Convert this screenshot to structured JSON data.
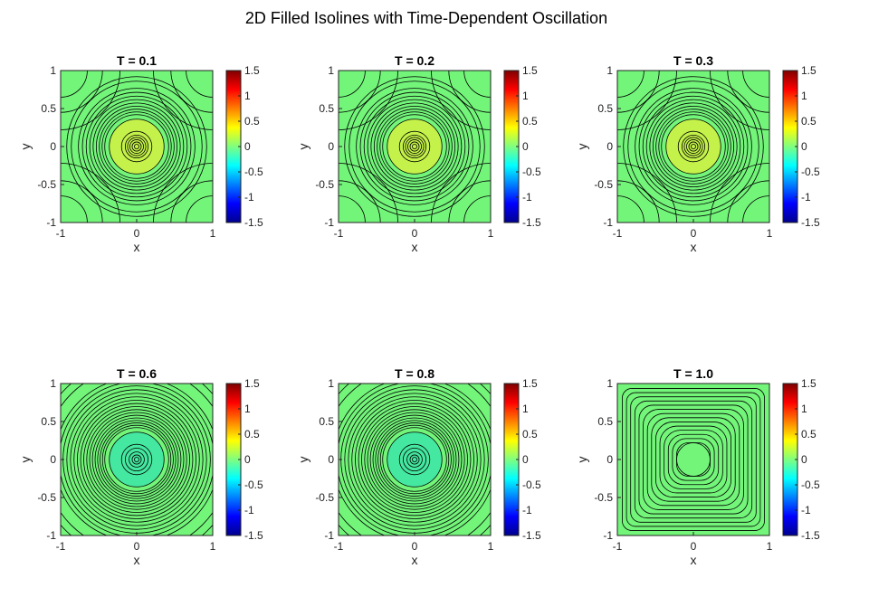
{
  "figure": {
    "title": "2D Filled Isolines with Time-Dependent Oscillation"
  },
  "chart_data": [
    {
      "type": "contourf",
      "title": "T = 0.1",
      "xlabel": "x",
      "ylabel": "y",
      "xlim": [
        -1,
        1
      ],
      "ylim": [
        -1,
        1
      ],
      "xticks": [
        "-1",
        "0",
        "1"
      ],
      "yticks": [
        "1",
        "0.5",
        "0",
        "-0.5",
        "-1"
      ],
      "colorbar": {
        "range": [
          -1.5,
          1.5
        ],
        "ticks": [
          "1.5",
          "1",
          "0.5",
          "0",
          "-0.5",
          "-1",
          "-1.5"
        ],
        "colormap": "jet"
      },
      "t": 0.1
    },
    {
      "type": "contourf",
      "title": "T = 0.2",
      "xlabel": "x",
      "ylabel": "y",
      "xlim": [
        -1,
        1
      ],
      "ylim": [
        -1,
        1
      ],
      "xticks": [
        "-1",
        "0",
        "1"
      ],
      "yticks": [
        "1",
        "0.5",
        "0",
        "-0.5",
        "-1"
      ],
      "colorbar": {
        "range": [
          -1.5,
          1.5
        ],
        "ticks": [
          "1.5",
          "1",
          "0.5",
          "0",
          "-0.5",
          "-1",
          "-1.5"
        ],
        "colormap": "jet"
      },
      "t": 0.2
    },
    {
      "type": "contourf",
      "title": "T = 0.3",
      "xlabel": "x",
      "ylabel": "y",
      "xlim": [
        -1,
        1
      ],
      "ylim": [
        -1,
        1
      ],
      "xticks": [
        "-1",
        "0",
        "1"
      ],
      "yticks": [
        "1",
        "0.5",
        "0",
        "-0.5",
        "-1"
      ],
      "colorbar": {
        "range": [
          -1.5,
          1.5
        ],
        "ticks": [
          "1.5",
          "1",
          "0.5",
          "0",
          "-0.5",
          "-1",
          "-1.5"
        ],
        "colormap": "jet"
      },
      "t": 0.3
    },
    {
      "type": "contourf",
      "title": "T = 0.6",
      "xlabel": "x",
      "ylabel": "y",
      "xlim": [
        -1,
        1
      ],
      "ylim": [
        -1,
        1
      ],
      "xticks": [
        "-1",
        "0",
        "1"
      ],
      "yticks": [
        "1",
        "0.5",
        "0",
        "-0.5",
        "-1"
      ],
      "colorbar": {
        "range": [
          -1.5,
          1.5
        ],
        "ticks": [
          "1.5",
          "1",
          "0.5",
          "0",
          "-0.5",
          "-1",
          "-1.5"
        ],
        "colormap": "jet"
      },
      "t": 0.6
    },
    {
      "type": "contourf",
      "title": "T = 0.8",
      "xlabel": "x",
      "ylabel": "y",
      "xlim": [
        -1,
        1
      ],
      "ylim": [
        -1,
        1
      ],
      "xticks": [
        "-1",
        "0",
        "1"
      ],
      "yticks": [
        "1",
        "0.5",
        "0",
        "-0.5",
        "-1"
      ],
      "colorbar": {
        "range": [
          -1.5,
          1.5
        ],
        "ticks": [
          "1.5",
          "1",
          "0.5",
          "0",
          "-0.5",
          "-1",
          "-1.5"
        ],
        "colormap": "jet"
      },
      "t": 0.8
    },
    {
      "type": "contourf",
      "title": "T = 1.0",
      "xlabel": "x",
      "ylabel": "y",
      "xlim": [
        -1,
        1
      ],
      "ylim": [
        -1,
        1
      ],
      "xticks": [
        "-1",
        "0",
        "1"
      ],
      "yticks": [
        "1",
        "0.5",
        "0",
        "-0.5",
        "-1"
      ],
      "colorbar": {
        "range": [
          -1.5,
          1.5
        ],
        "ticks": [
          "1.5",
          "1",
          "0.5",
          "0",
          "-0.5",
          "-1",
          "-1.5"
        ],
        "colormap": "jet"
      },
      "t": 1.0
    }
  ]
}
